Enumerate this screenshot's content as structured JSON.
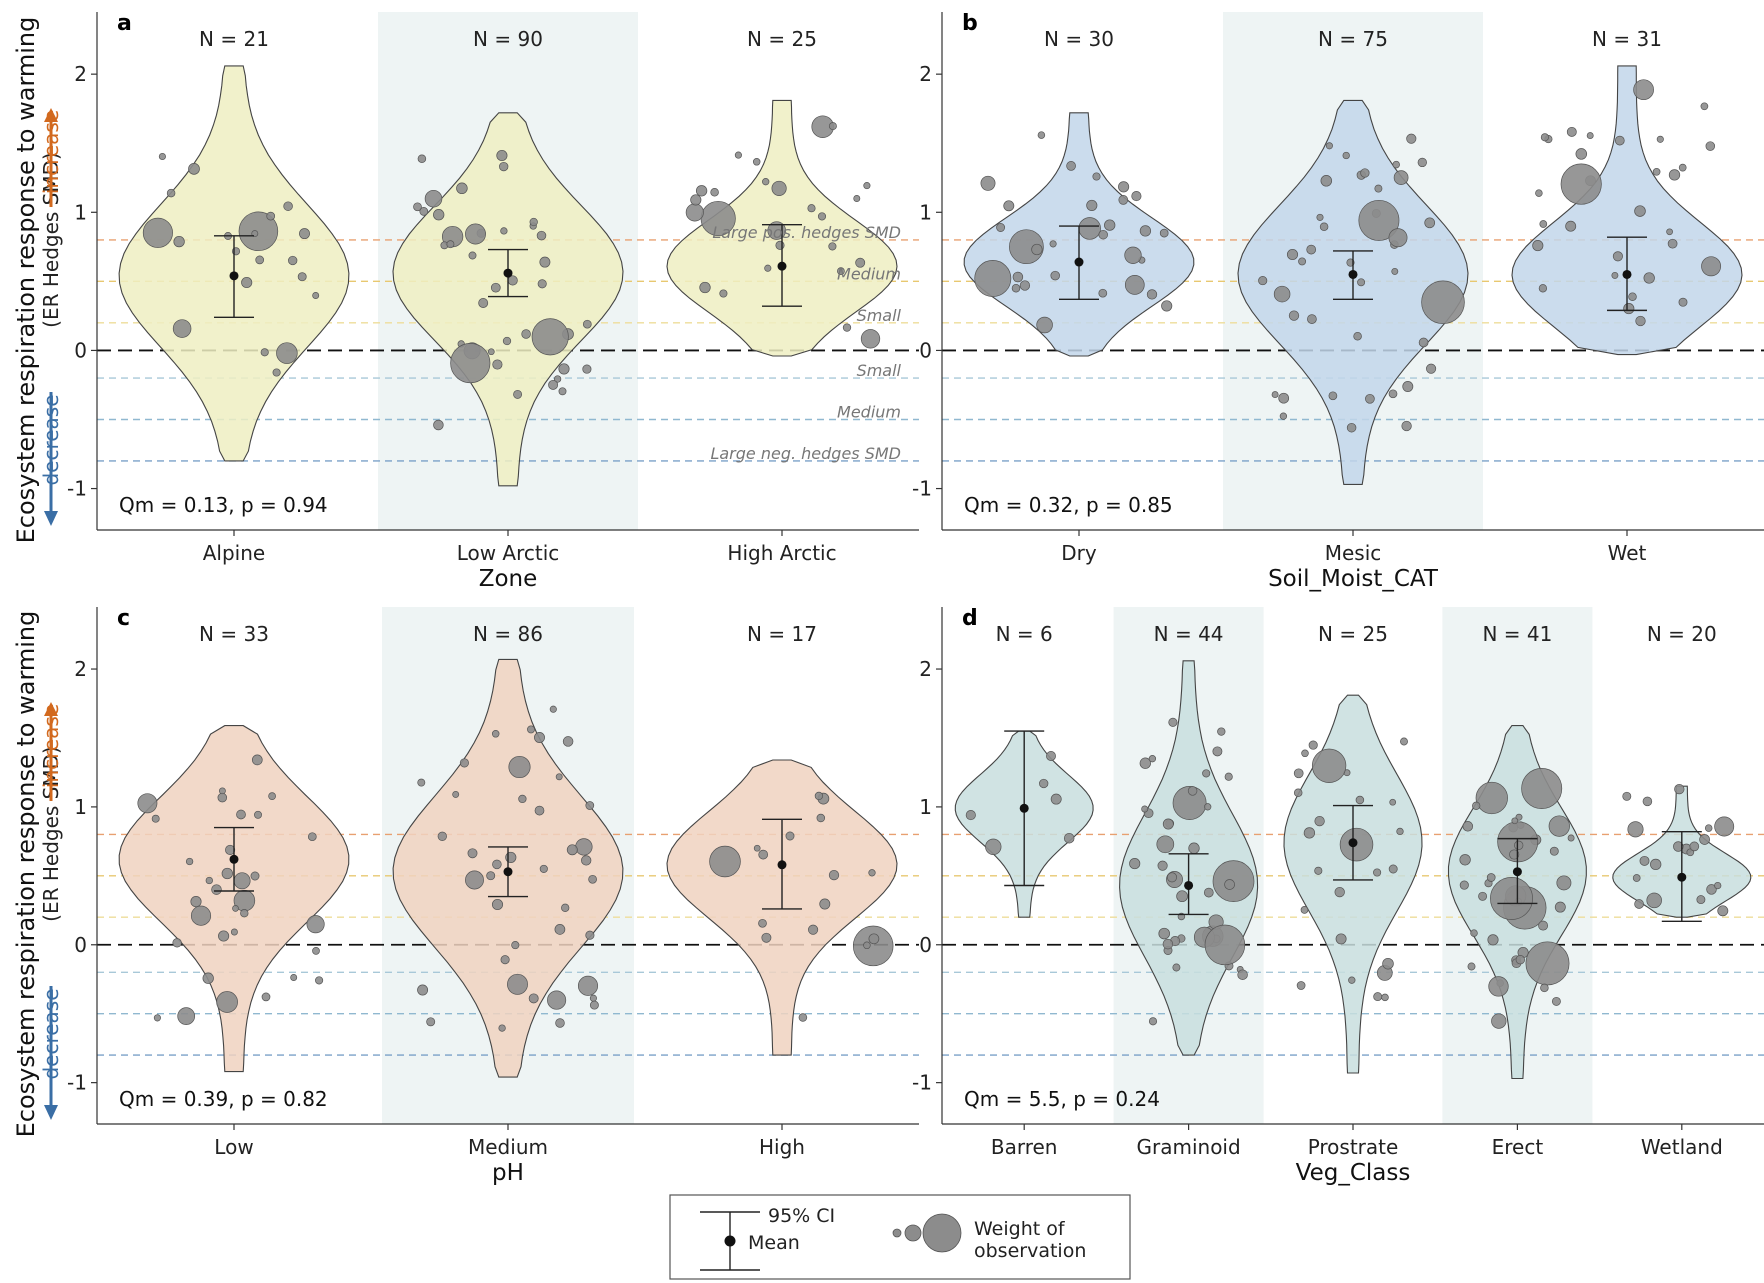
{
  "figure": {
    "y_axis_label": "Ecosystem respiration response to warming",
    "y_axis_sublabel": "(ER Hedges SMD)",
    "increase_label": "increase",
    "decrease_label": "decrease",
    "colors": {
      "increase": "#d2691e",
      "decrease": "#3a6ea5",
      "point": "#8c8c8c",
      "shade": "#eef4f4"
    }
  },
  "legend": {
    "ci_label": "95% CI",
    "mean_label": "Mean",
    "weight_label_line1": "Weight of",
    "weight_label_line2": "observation"
  },
  "chart_data": [
    {
      "panel": "a",
      "type": "violin",
      "xlabel": "Zone",
      "ylim": [
        -1.3,
        2.45
      ],
      "yticks": [
        -1,
        0,
        1,
        2
      ],
      "categories": [
        "Alpine",
        "Low Arctic",
        "High Arctic"
      ],
      "n_labels": [
        "N = 21",
        "N = 90",
        "N = 25"
      ],
      "shaded": [
        false,
        true,
        false
      ],
      "violin_color": "#eeeec2",
      "means": [
        0.54,
        0.56,
        0.61
      ],
      "ci_low": [
        0.24,
        0.39,
        0.32
      ],
      "ci_high": [
        0.83,
        0.73,
        0.91
      ],
      "ranges": [
        [
          -0.8,
          2.06
        ],
        [
          -0.98,
          1.72
        ],
        [
          -0.04,
          1.81
        ]
      ],
      "stat": "Qm = 0.13,  p = 0.94",
      "reference_lines": [
        {
          "value": 0.8,
          "color": "#e8a070",
          "label": "Large pos. hedges SMD"
        },
        {
          "value": 0.5,
          "color": "#e8c870",
          "label": "Medium"
        },
        {
          "value": 0.2,
          "color": "#eedd9a",
          "label": "Small"
        },
        {
          "value": -0.2,
          "color": "#a8c8d8",
          "label": "Small"
        },
        {
          "value": -0.5,
          "color": "#90b8d0",
          "label": "Medium"
        },
        {
          "value": -0.8,
          "color": "#7aa0c8",
          "label": "Large neg. hedges  SMD"
        }
      ]
    },
    {
      "panel": "b",
      "type": "violin",
      "xlabel": "Soil_Moist_CAT",
      "ylim": [
        -1.3,
        2.45
      ],
      "yticks": [
        -1,
        0,
        1,
        2
      ],
      "categories": [
        "Dry",
        "Mesic",
        "Wet"
      ],
      "n_labels": [
        "N = 30",
        "N = 75",
        "N = 31"
      ],
      "shaded": [
        false,
        true,
        false
      ],
      "violin_color": "#c2d6ea",
      "means": [
        0.64,
        0.55,
        0.55
      ],
      "ci_low": [
        0.37,
        0.37,
        0.29
      ],
      "ci_high": [
        0.9,
        0.72,
        0.82
      ],
      "ranges": [
        [
          -0.04,
          1.72
        ],
        [
          -0.97,
          1.81
        ],
        [
          -0.03,
          2.06
        ]
      ],
      "stat": "Qm = 0.32,  p = 0.85",
      "reference_lines": [
        {
          "value": 0.8,
          "color": "#e8a070",
          "label": ""
        },
        {
          "value": 0.5,
          "color": "#e8c870",
          "label": ""
        },
        {
          "value": 0.2,
          "color": "#eedd9a",
          "label": ""
        },
        {
          "value": -0.2,
          "color": "#a8c8d8",
          "label": ""
        },
        {
          "value": -0.5,
          "color": "#90b8d0",
          "label": ""
        },
        {
          "value": -0.8,
          "color": "#7aa0c8",
          "label": ""
        }
      ]
    },
    {
      "panel": "c",
      "type": "violin",
      "xlabel": "pH",
      "ylim": [
        -1.3,
        2.45
      ],
      "yticks": [
        -1,
        0,
        1,
        2
      ],
      "categories": [
        "Low",
        "Medium",
        "High"
      ],
      "n_labels": [
        "N = 33",
        "N = 86",
        "N = 17"
      ],
      "shaded": [
        false,
        true,
        false
      ],
      "violin_color": "#f0d2c0",
      "means": [
        0.62,
        0.53,
        0.58
      ],
      "ci_low": [
        0.39,
        0.35,
        0.26
      ],
      "ci_high": [
        0.85,
        0.71,
        0.91
      ],
      "ranges": [
        [
          -0.92,
          1.59
        ],
        [
          -0.96,
          2.07
        ],
        [
          -0.8,
          1.34
        ]
      ],
      "stat": "Qm = 0.39,  p = 0.82",
      "reference_lines": [
        {
          "value": 0.8,
          "color": "#e8a070",
          "label": ""
        },
        {
          "value": 0.5,
          "color": "#e8c870",
          "label": ""
        },
        {
          "value": 0.2,
          "color": "#eedd9a",
          "label": ""
        },
        {
          "value": -0.2,
          "color": "#a8c8d8",
          "label": ""
        },
        {
          "value": -0.5,
          "color": "#90b8d0",
          "label": ""
        },
        {
          "value": -0.8,
          "color": "#7aa0c8",
          "label": ""
        }
      ]
    },
    {
      "panel": "d",
      "type": "violin",
      "xlabel": "Veg_Class",
      "ylim": [
        -1.3,
        2.45
      ],
      "yticks": [
        -1,
        0,
        1,
        2
      ],
      "categories": [
        "Barren",
        "Graminoid",
        "Prostrate",
        "Erect",
        "Wetland"
      ],
      "n_labels": [
        "N = 6",
        "N = 44",
        "N = 25",
        "N = 41",
        "N = 20"
      ],
      "shaded": [
        false,
        true,
        false,
        true,
        false
      ],
      "violin_color": "#c8dede",
      "means": [
        0.99,
        0.43,
        0.74,
        0.53,
        0.49
      ],
      "ci_low": [
        0.43,
        0.22,
        0.47,
        0.3,
        0.17
      ],
      "ci_high": [
        1.55,
        0.66,
        1.01,
        0.77,
        0.82
      ],
      "ranges": [
        [
          0.2,
          1.55
        ],
        [
          -0.8,
          2.06
        ],
        [
          -0.93,
          1.81
        ],
        [
          -0.97,
          1.59
        ],
        [
          0.2,
          1.15
        ]
      ],
      "stat": "Qm = 5.5,  p = 0.24",
      "reference_lines": [
        {
          "value": 0.8,
          "color": "#e8a070",
          "label": ""
        },
        {
          "value": 0.5,
          "color": "#e8c870",
          "label": ""
        },
        {
          "value": 0.2,
          "color": "#eedd9a",
          "label": ""
        },
        {
          "value": -0.2,
          "color": "#a8c8d8",
          "label": ""
        },
        {
          "value": -0.5,
          "color": "#90b8d0",
          "label": ""
        },
        {
          "value": -0.8,
          "color": "#7aa0c8",
          "label": ""
        }
      ]
    }
  ]
}
